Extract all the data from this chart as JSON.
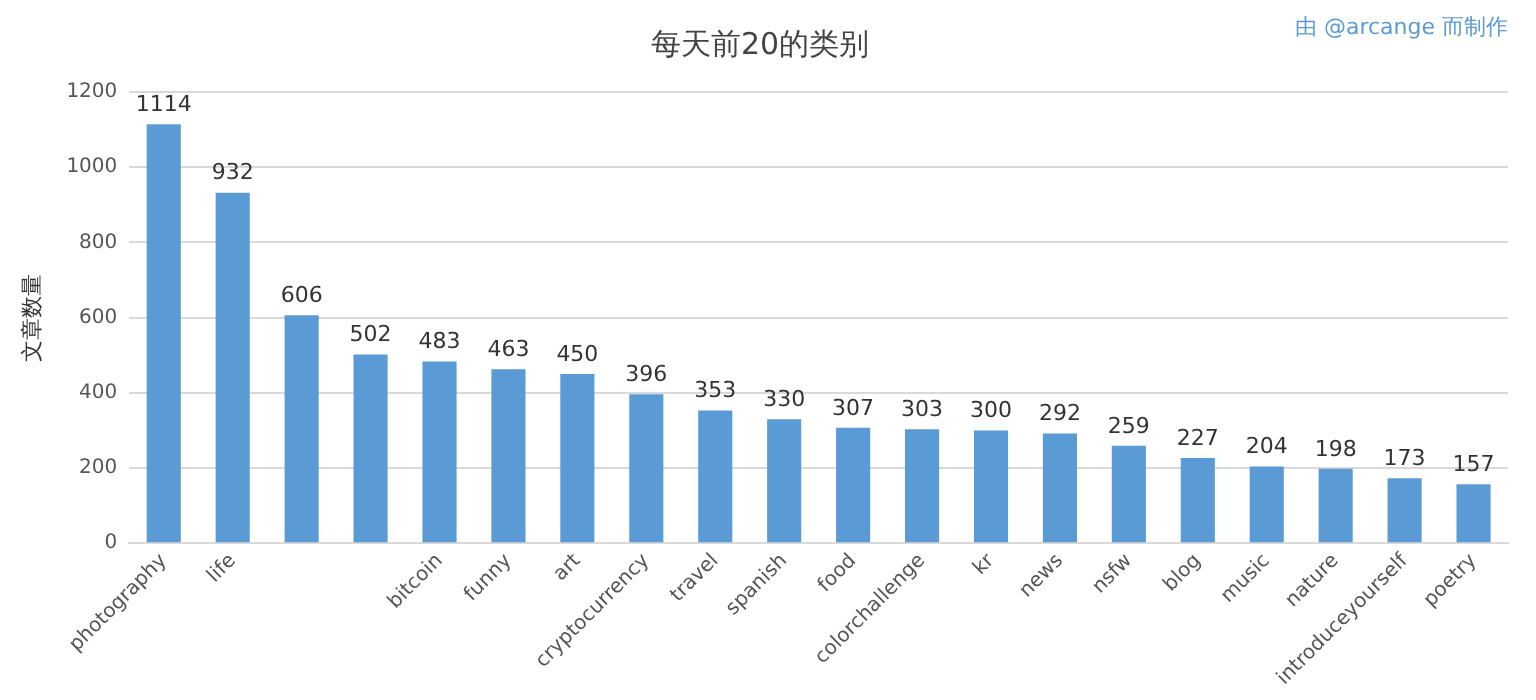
{
  "chart_data": {
    "type": "bar",
    "title": "每天前20的类别",
    "ylabel": "文章数量",
    "annotations": [
      "由 @arcange 而制作"
    ],
    "categories": [
      "photography",
      "life",
      null,
      null,
      "bitcoin",
      "funny",
      "art",
      "cryptocurrency",
      "travel",
      "spanish",
      "food",
      "colorchallenge",
      "kr",
      "news",
      "nsfw",
      "blog",
      "music",
      "nature",
      "introduceyourself",
      "poetry"
    ],
    "values": [
      1114,
      932,
      606,
      502,
      483,
      463,
      450,
      396,
      353,
      330,
      307,
      303,
      300,
      292,
      259,
      227,
      204,
      198,
      173,
      157
    ],
    "color": "#5b9bd5",
    "ylim": [
      0,
      1200
    ],
    "yticks": [
      0,
      200,
      400,
      600,
      800,
      1000,
      1200
    ],
    "grid": "y",
    "data_labels": true
  }
}
